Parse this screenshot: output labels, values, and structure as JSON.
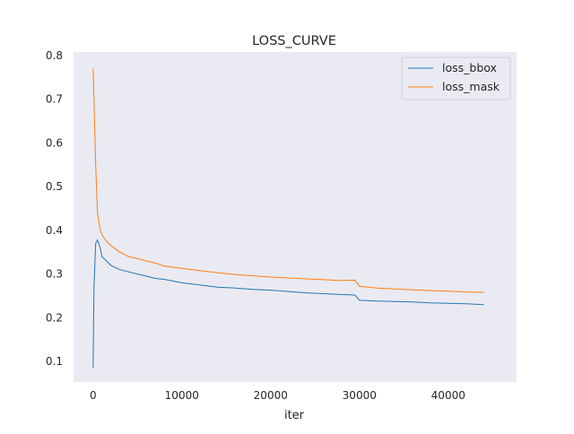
{
  "chart_data": {
    "type": "line",
    "title": "LOSS_CURVE",
    "xlabel": "iter",
    "ylabel": "",
    "xlim": [
      -2200,
      47700
    ],
    "ylim": [
      0.053,
      0.808
    ],
    "xticks": [
      0,
      10000,
      20000,
      30000,
      40000
    ],
    "yticks": [
      0.1,
      0.2,
      0.3,
      0.4,
      0.5,
      0.6,
      0.7,
      0.8
    ],
    "grid": false,
    "background": "#eaeaf2",
    "legend": "top-right",
    "series": [
      {
        "name": "loss_bbox",
        "color": "#1f77b4",
        "x": [
          0,
          100,
          300,
          500,
          800,
          1000,
          1500,
          2000,
          3000,
          4000,
          5000,
          6000,
          7000,
          8000,
          10000,
          12000,
          14000,
          16000,
          18000,
          20000,
          22000,
          24000,
          26000,
          28000,
          29500,
          30000,
          32000,
          34000,
          36000,
          38000,
          40000,
          42000,
          44000
        ],
        "y": [
          0.085,
          0.27,
          0.37,
          0.378,
          0.36,
          0.34,
          0.33,
          0.32,
          0.31,
          0.305,
          0.3,
          0.295,
          0.29,
          0.288,
          0.28,
          0.275,
          0.27,
          0.268,
          0.265,
          0.263,
          0.26,
          0.257,
          0.255,
          0.253,
          0.252,
          0.24,
          0.238,
          0.237,
          0.236,
          0.234,
          0.233,
          0.232,
          0.23
        ]
      },
      {
        "name": "loss_mask",
        "color": "#ff7f0e",
        "x": [
          0,
          100,
          300,
          500,
          800,
          1000,
          1500,
          2000,
          3000,
          4000,
          5000,
          6000,
          7000,
          8000,
          10000,
          12000,
          14000,
          16000,
          18000,
          20000,
          22000,
          24000,
          26000,
          28000,
          29500,
          30000,
          32000,
          34000,
          36000,
          38000,
          40000,
          42000,
          44000
        ],
        "y": [
          0.77,
          0.7,
          0.55,
          0.44,
          0.4,
          0.39,
          0.375,
          0.365,
          0.35,
          0.34,
          0.335,
          0.33,
          0.325,
          0.318,
          0.313,
          0.308,
          0.303,
          0.299,
          0.296,
          0.293,
          0.291,
          0.289,
          0.287,
          0.285,
          0.286,
          0.272,
          0.268,
          0.266,
          0.264,
          0.262,
          0.261,
          0.259,
          0.258
        ]
      }
    ]
  }
}
